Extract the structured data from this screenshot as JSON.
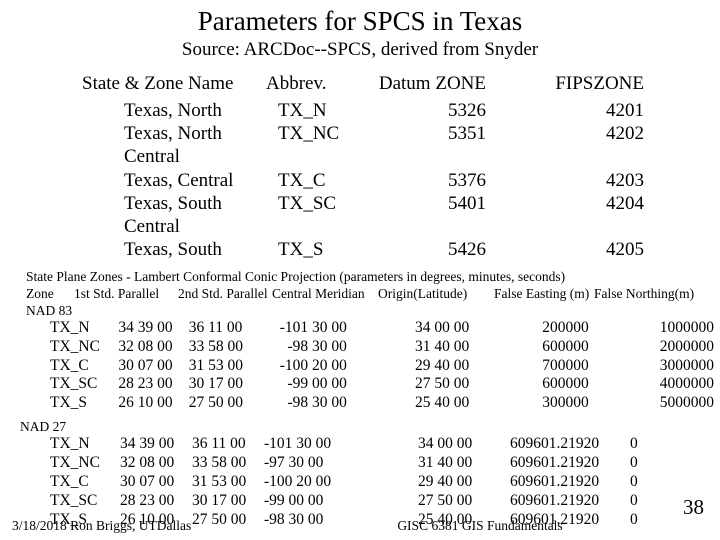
{
  "title": "Parameters for SPCS in Texas",
  "subtitle": "Source: ARCDoc--SPCS, derived from Snyder",
  "table1": {
    "headers": {
      "c1": "State & Zone Name",
      "c2": "Abbrev.",
      "c3": "Datum ZONE",
      "c4": "FIPSZONE"
    },
    "rows": [
      {
        "c1": "Texas, North",
        "c2": "TX_N",
        "c3": "5326",
        "c4": "4201"
      },
      {
        "c1": "Texas, North Central",
        "c2": "TX_NC",
        "c3": "5351",
        "c4": "4202"
      },
      {
        "c1": "Texas, Central",
        "c2": "TX_C",
        "c3": "5376",
        "c4": "4203"
      },
      {
        "c1": "Texas, South Central",
        "c2": "TX_SC",
        "c3": "5401",
        "c4": "4204"
      },
      {
        "c1": "Texas, South",
        "c2": "TX_S",
        "c3": "5426",
        "c4": "4205"
      }
    ]
  },
  "desc_line": "State Plane Zones - Lambert Conformal Conic Projection   (parameters in degrees, minutes, seconds)",
  "cols": {
    "zone": "Zone",
    "p1": "1st Std. Parallel",
    "p2": "2nd Std. Parallel",
    "cm": "Central Meridian",
    "ol": "Origin(Latitude)",
    "fe": "False Easting (m)",
    "fn": "False Northing(m)"
  },
  "nad83_label": "NAD 83",
  "nad83_rows": [
    {
      "zone": "TX_N",
      "p1": "34 39 00",
      "p2": "36 11 00",
      "cm": "-101 30 00",
      "ol": "34 00 00",
      "fe": "200000",
      "fn": "1000000"
    },
    {
      "zone": "TX_NC",
      "p1": "32 08 00",
      "p2": "33 58 00",
      "cm": "-98 30 00",
      "ol": "31 40 00",
      "fe": "600000",
      "fn": "2000000"
    },
    {
      "zone": "TX_C",
      "p1": "30 07 00",
      "p2": "31 53 00",
      "cm": "-100 20 00",
      "ol": "29 40 00",
      "fe": "700000",
      "fn": "3000000"
    },
    {
      "zone": "TX_SC",
      "p1": "28 23 00",
      "p2": "30 17 00",
      "cm": "-99 00 00",
      "ol": "27 50 00",
      "fe": "600000",
      "fn": "4000000"
    },
    {
      "zone": "TX_S",
      "p1": "26 10 00",
      "p2": "27 50 00",
      "cm": "-98 30 00",
      "ol": "25 40 00",
      "fe": "300000",
      "fn": "5000000"
    }
  ],
  "nad27_label": "NAD 27",
  "nad27_rows": [
    {
      "zone": "TX_N",
      "p1": "34 39 00",
      "p2": "36 11 00",
      "cm": "-101 30 00",
      "ol": "34 00 00",
      "fe": "609601.21920",
      "fn": "0"
    },
    {
      "zone": "TX_NC",
      "p1": "32 08 00",
      "p2": "33 58 00",
      "cm": "-97 30 00",
      "ol": "31 40 00",
      "fe": "609601.21920",
      "fn": "0"
    },
    {
      "zone": "TX_C",
      "p1": "30 07 00",
      "p2": "31 53 00",
      "cm": "-100 20 00",
      "ol": "29 40 00",
      "fe": "609601.21920",
      "fn": "0"
    },
    {
      "zone": "TX_SC",
      "p1": "28 23 00",
      "p2": "30 17 00",
      "cm": "-99 00 00",
      "ol": "27 50 00",
      "fe": "609601.21920",
      "fn": "0"
    },
    {
      "zone": "TX_S",
      "p1": "26 10 00",
      "p2": "27 50 00",
      "cm": "-98 30 00",
      "ol": "25 40 00",
      "fe": "609601.21920",
      "fn": "0"
    }
  ],
  "footer": {
    "left": "3/18/2018  Ron Briggs, UTDallas",
    "center": "GISC 6381  GIS Fundamentals"
  },
  "page": "38"
}
